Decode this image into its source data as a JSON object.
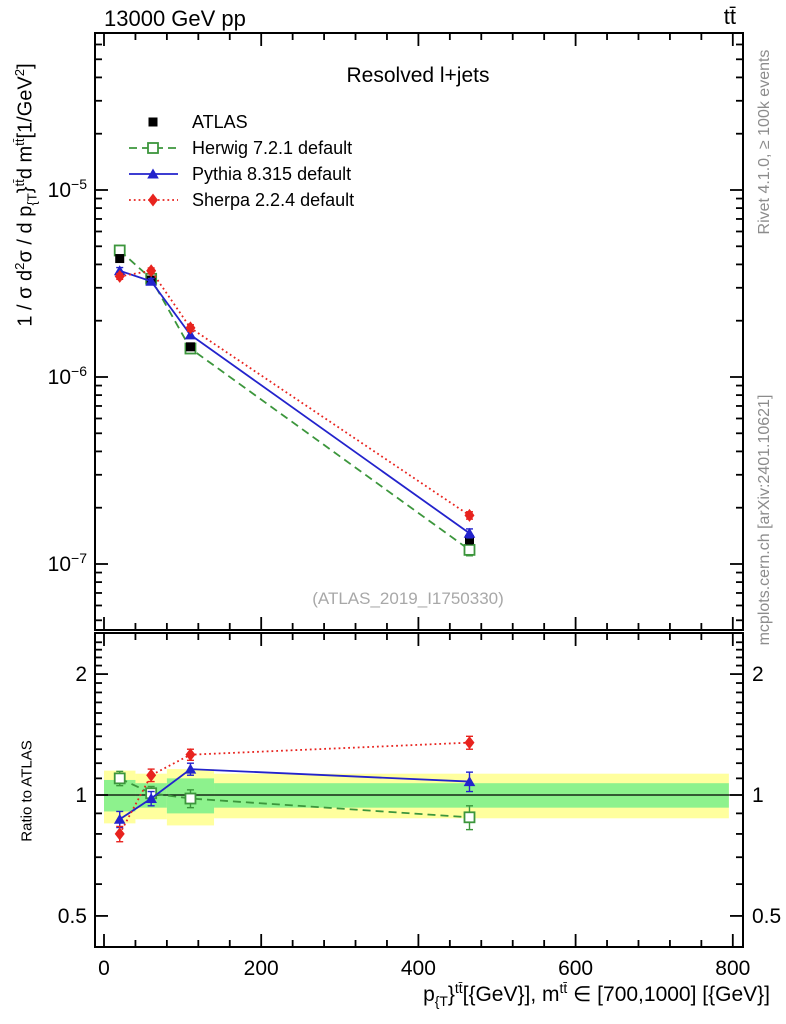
{
  "header": {
    "beam_energy": "13000 GeV pp",
    "process": "tt̄"
  },
  "titles": {
    "plot_title": "Resolved l+jets",
    "watermark": "(ATLAS_2019_I1750330)",
    "ratio_label": "Ratio to ATLAS"
  },
  "side_notes": {
    "rivet": "Rivet 4.1.0, ≥ 100k events",
    "mcplots": "mcplots.cern.ch [arXiv:2401.10621]"
  },
  "colors": {
    "atlas": "#000000",
    "herwig": "#3c963c",
    "pythia": "#2323cc",
    "sherpa": "#e8231e",
    "band_yellow": "#ffff9e",
    "band_green": "#8df28d",
    "gray_text": "#8c8c8c",
    "watermark_gray": "#a8a8a8"
  },
  "chart_data": {
    "type": "line",
    "title": "Resolved l+jets",
    "x_bin_centers": [
      20,
      60,
      110,
      465
    ],
    "x_bins": [
      [
        0,
        40
      ],
      [
        40,
        80
      ],
      [
        80,
        140
      ],
      [
        140,
        795
      ]
    ],
    "xlim": [
      -11.5,
      813
    ],
    "xticks": [
      0,
      200,
      400,
      600,
      800
    ],
    "x_minor_step": 40,
    "xlabel_parts": [
      {
        "t": "p"
      },
      {
        "t": "{T",
        "sub": true
      },
      {
        "t": "}"
      },
      {
        "t": "tt̄",
        "sup": true
      },
      {
        "t": "[{GeV}], m"
      },
      {
        "t": "tt̄",
        "sup": true
      },
      {
        "t": " ∈ [700,1000] [{GeV}]"
      }
    ],
    "ylabel_parts": [
      {
        "t": "1 / σ d"
      },
      {
        "t": "2",
        "sup": true
      },
      {
        "t": "σ /  d p"
      },
      {
        "t": "{T",
        "sub": true
      },
      {
        "t": "}"
      },
      {
        "t": "tt̄",
        "sup": true
      },
      {
        "t": "d m"
      },
      {
        "t": "tt̄",
        "sup": true
      },
      {
        "t": "[1/GeV"
      },
      {
        "t": "2",
        "sup": true
      },
      {
        "t": "]"
      }
    ],
    "main_axis": {
      "log": true,
      "ylim": [
        4.5e-08,
        6.9e-05
      ],
      "decade_labels": [
        -5,
        -6,
        -7
      ]
    },
    "ratio_axis": {
      "log": true,
      "ylim": [
        0.42,
        2.52
      ],
      "yticks": [
        2,
        1,
        0.5
      ],
      "label": "Ratio to ATLAS"
    },
    "series": [
      {
        "name": "ATLAS",
        "color_key": "atlas",
        "marker": "square",
        "line": "none",
        "values": [
          4.3e-06,
          3.3e-06,
          1.45e-06,
          1.35e-07
        ],
        "rel_err": [
          0.04,
          0.04,
          0.04,
          0.05
        ],
        "ratio": null
      },
      {
        "name": "Herwig 7.2.1 default",
        "color_key": "herwig",
        "marker": "open-square",
        "line": "dashed",
        "values": [
          4.75e-06,
          3.35e-06,
          1.42e-06,
          1.19e-07
        ],
        "rel_err": [
          0.045,
          0.04,
          0.05,
          0.07
        ],
        "ratio": [
          1.1,
          1.01,
          0.98,
          0.88
        ],
        "ratio_err": [
          0.045,
          0.04,
          0.05,
          0.06
        ]
      },
      {
        "name": "Pythia 8.315 default",
        "color_key": "pythia",
        "marker": "triangle",
        "line": "solid",
        "values": [
          3.7e-06,
          3.25e-06,
          1.68e-06,
          1.46e-07
        ],
        "rel_err": [
          0.04,
          0.035,
          0.04,
          0.055
        ],
        "ratio": [
          0.87,
          0.98,
          1.16,
          1.08
        ],
        "ratio_err": [
          0.04,
          0.04,
          0.04,
          0.06
        ]
      },
      {
        "name": "Sherpa 2.2.4 default",
        "color_key": "sherpa",
        "marker": "diamond",
        "line": "dotted",
        "values": [
          3.45e-06,
          3.7e-06,
          1.83e-06,
          1.82e-07
        ],
        "rel_err": [
          0.035,
          0.035,
          0.04,
          0.045
        ],
        "ratio": [
          0.8,
          1.12,
          1.26,
          1.35
        ],
        "ratio_err": [
          0.035,
          0.04,
          0.04,
          0.05
        ]
      }
    ],
    "bands": {
      "yellow": [
        [
          0.85,
          1.15
        ],
        [
          0.87,
          1.13
        ],
        [
          0.84,
          1.16
        ],
        [
          0.875,
          1.13
        ]
      ],
      "green": [
        [
          0.91,
          1.09
        ],
        [
          0.93,
          1.07
        ],
        [
          0.9,
          1.1
        ],
        [
          0.93,
          1.07
        ]
      ]
    }
  }
}
